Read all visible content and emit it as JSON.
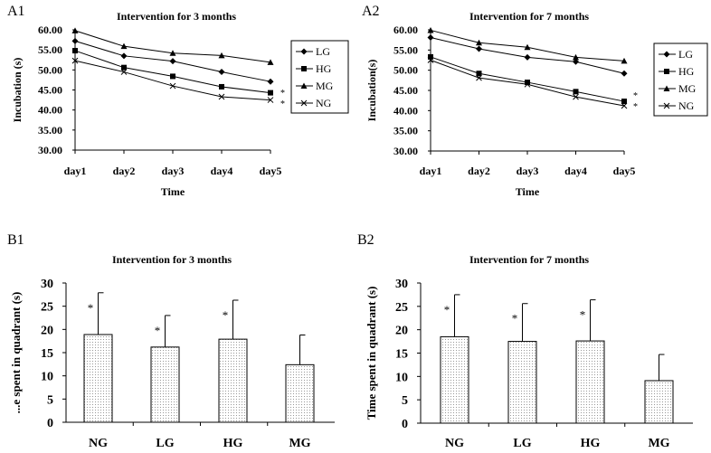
{
  "chart_data": [
    {
      "panel_label": "A1",
      "type": "line",
      "title": "Intervention for 3 months",
      "xlabel": "Time",
      "ylabel": "Incubation (s)",
      "categories": [
        "day1",
        "day2",
        "day3",
        "day4",
        "day5"
      ],
      "ylim": [
        30,
        60
      ],
      "yticks": [
        "30.00",
        "35.00",
        "40.00",
        "45.00",
        "50.00",
        "55.00",
        "60.00"
      ],
      "grid": false,
      "legend": "right",
      "series": [
        {
          "name": "LG",
          "marker": "diamond",
          "values": [
            57.2,
            53.5,
            52.2,
            49.5,
            47.1
          ]
        },
        {
          "name": "HG",
          "marker": "square",
          "values": [
            54.8,
            50.6,
            48.4,
            45.8,
            44.3
          ]
        },
        {
          "name": "MG",
          "marker": "triangle",
          "values": [
            59.8,
            55.9,
            54.2,
            53.6,
            51.9
          ]
        },
        {
          "name": "NG",
          "marker": "x",
          "values": [
            52.3,
            49.5,
            46.0,
            43.3,
            42.5
          ]
        }
      ],
      "annotations": [
        "*",
        "*"
      ]
    },
    {
      "panel_label": "A2",
      "type": "line",
      "title": "Intervention for 7 months",
      "xlabel": "Time",
      "ylabel": "Incubation(s)",
      "categories": [
        "day1",
        "day2",
        "day3",
        "day4",
        "day5"
      ],
      "ylim": [
        30,
        60
      ],
      "yticks": [
        "30.00",
        "35.00",
        "40.00",
        "45.00",
        "50.00",
        "55.00",
        "60.00"
      ],
      "grid": false,
      "legend": "right",
      "series": [
        {
          "name": "LG",
          "marker": "diamond",
          "values": [
            58.1,
            55.3,
            53.2,
            52.1,
            49.2
          ]
        },
        {
          "name": "HG",
          "marker": "square",
          "values": [
            53.3,
            49.2,
            47.0,
            44.7,
            42.3
          ]
        },
        {
          "name": "MG",
          "marker": "triangle",
          "values": [
            59.9,
            56.8,
            55.7,
            53.2,
            52.3
          ]
        },
        {
          "name": "NG",
          "marker": "x",
          "values": [
            52.5,
            48.1,
            46.5,
            43.4,
            41.2
          ]
        }
      ],
      "annotations": [
        "*",
        "*"
      ]
    },
    {
      "panel_label": "B1",
      "type": "bar",
      "title": "Intervention for 3 months",
      "xlabel": "",
      "ylabel": "...e spent in quadrant (s)",
      "categories": [
        "NG",
        "LG",
        "HG",
        "MG"
      ],
      "values": [
        18.9,
        16.2,
        17.9,
        12.4
      ],
      "error_upper": [
        27.9,
        23.0,
        26.3,
        18.8
      ],
      "significance": [
        "*",
        "*",
        "*",
        ""
      ],
      "ylim": [
        0,
        30
      ],
      "yticks": [
        "0",
        "5",
        "10",
        "15",
        "20",
        "25",
        "30"
      ],
      "grid": false
    },
    {
      "panel_label": "B2",
      "type": "bar",
      "title": "Intervention for 7 months",
      "xlabel": "",
      "ylabel": "Time spent in quadrant (s)",
      "categories": [
        "NG",
        "LG",
        "HG",
        "MG"
      ],
      "values": [
        18.5,
        17.5,
        17.6,
        9.1
      ],
      "error_upper": [
        27.5,
        25.6,
        26.4,
        14.7
      ],
      "significance": [
        "*",
        "*",
        "*",
        ""
      ],
      "ylim": [
        0,
        30
      ],
      "yticks": [
        "0",
        "5",
        "10",
        "15",
        "20",
        "25",
        "30"
      ],
      "grid": false
    }
  ]
}
